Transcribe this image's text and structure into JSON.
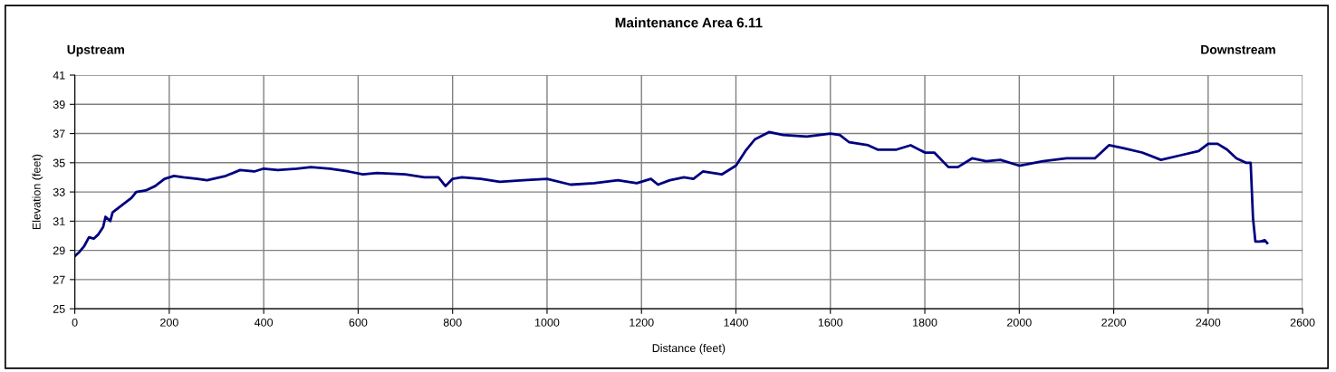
{
  "chart_data": {
    "type": "line",
    "title": "Maintenance Area 6.11",
    "xlabel": "Distance (feet)",
    "ylabel": "Elevation (feet)",
    "annotations": [
      "Upstream",
      "Downstream"
    ],
    "x": [
      0,
      10,
      20,
      30,
      40,
      50,
      60,
      65,
      75,
      80,
      100,
      120,
      130,
      150,
      170,
      190,
      210,
      230,
      260,
      280,
      320,
      350,
      380,
      400,
      430,
      470,
      500,
      540,
      580,
      610,
      640,
      700,
      740,
      770,
      785,
      800,
      820,
      860,
      900,
      950,
      1000,
      1050,
      1100,
      1150,
      1190,
      1220,
      1235,
      1260,
      1290,
      1310,
      1330,
      1370,
      1400,
      1420,
      1440,
      1470,
      1500,
      1550,
      1600,
      1620,
      1640,
      1680,
      1700,
      1740,
      1770,
      1800,
      1820,
      1850,
      1870,
      1900,
      1930,
      1960,
      2000,
      2050,
      2100,
      2160,
      2190,
      2220,
      2260,
      2300,
      2340,
      2380,
      2400,
      2420,
      2440,
      2460,
      2480,
      2490,
      2495,
      2500,
      2510,
      2520,
      2525
    ],
    "series": [
      {
        "color": "#000080",
        "values": [
          28.6,
          28.9,
          29.3,
          29.9,
          29.8,
          30.1,
          30.6,
          31.3,
          31.0,
          31.6,
          32.1,
          32.6,
          33.0,
          33.1,
          33.4,
          33.9,
          34.1,
          34.0,
          33.9,
          33.8,
          34.1,
          34.5,
          34.4,
          34.6,
          34.5,
          34.6,
          34.7,
          34.6,
          34.4,
          34.2,
          34.3,
          34.2,
          34.0,
          34.0,
          33.4,
          33.9,
          34.0,
          33.9,
          33.7,
          33.8,
          33.9,
          33.5,
          33.6,
          33.8,
          33.6,
          33.9,
          33.5,
          33.8,
          34.0,
          33.9,
          34.4,
          34.2,
          34.8,
          35.8,
          36.6,
          37.1,
          36.9,
          36.8,
          37.0,
          36.9,
          36.4,
          36.2,
          35.9,
          35.9,
          36.2,
          35.7,
          35.7,
          34.7,
          34.7,
          35.3,
          35.1,
          35.2,
          34.8,
          35.1,
          35.3,
          35.3,
          36.2,
          36.0,
          35.7,
          35.2,
          35.5,
          35.8,
          36.3,
          36.3,
          35.9,
          35.3,
          35.0,
          35.0,
          31.2,
          29.6,
          29.6,
          29.7,
          29.5
        ]
      }
    ],
    "xlim": [
      0,
      2600
    ],
    "xticks": [
      0,
      200,
      400,
      600,
      800,
      1000,
      1200,
      1400,
      1600,
      1800,
      2000,
      2200,
      2400,
      2600
    ],
    "ylim": [
      25,
      41
    ],
    "yticks": [
      25,
      27,
      29,
      31,
      33,
      35,
      37,
      39,
      41
    ],
    "grid": true,
    "marker": "none",
    "line_style": "solid"
  }
}
